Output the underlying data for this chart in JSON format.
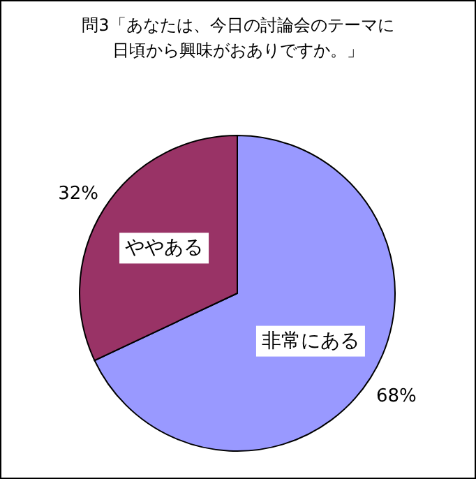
{
  "chart_data": {
    "type": "pie",
    "title": "問3「あなたは、今日の討論会のテーマに日頃から興味がおありですか。」",
    "categories": [
      "非常にある",
      "ややある"
    ],
    "values": [
      68,
      32
    ],
    "value_labels": [
      "68%",
      "32%"
    ],
    "colors": [
      "#9999ff",
      "#993366"
    ]
  }
}
